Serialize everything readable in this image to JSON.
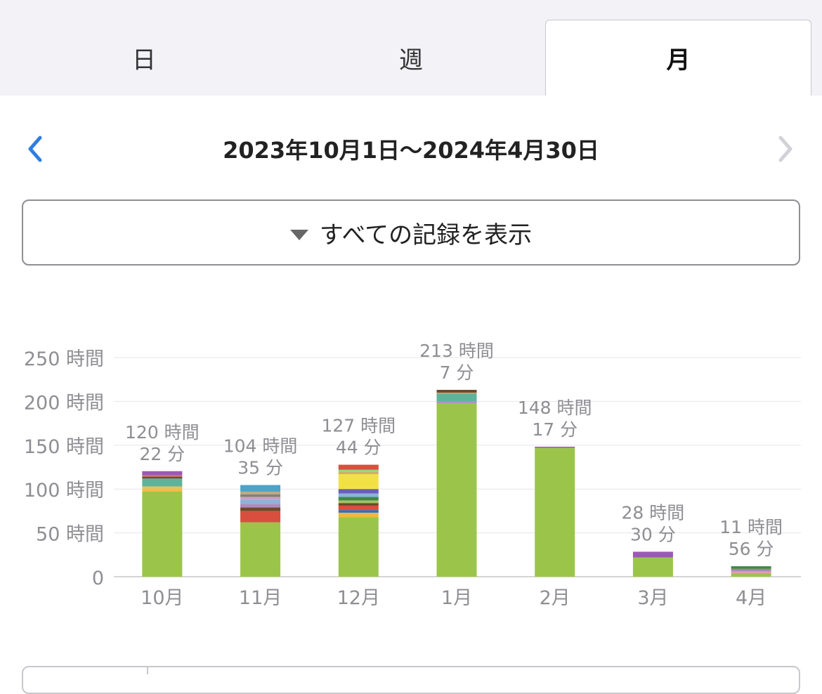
{
  "tabs": [
    {
      "label": "日",
      "active": false
    },
    {
      "label": "週",
      "active": false
    },
    {
      "label": "月",
      "active": true
    }
  ],
  "range": {
    "label": "2023年10月1日〜2024年4月30日",
    "prev_icon": "chevron-left-icon",
    "next_icon": "chevron-right-icon"
  },
  "filter": {
    "label": "すべての記録を表示",
    "icon": "triangle-down-icon"
  },
  "colors": {
    "accent": "#2f7de1",
    "gridline": "#e5e5ea",
    "axis_text": "#8e8e93",
    "primary_series": "#9bc54a"
  },
  "chart_data": {
    "type": "bar",
    "stacked": true,
    "y_unit": "時間",
    "ylim": [
      0,
      250
    ],
    "yticks": [
      {
        "value": 0,
        "label": "0"
      },
      {
        "value": 50,
        "label": "50 時間"
      },
      {
        "value": 100,
        "label": "100 時間"
      },
      {
        "value": 150,
        "label": "150 時間"
      },
      {
        "value": 200,
        "label": "200 時間"
      },
      {
        "value": 250,
        "label": "250 時間"
      }
    ],
    "grid": true,
    "categories": [
      "10月",
      "11月",
      "12月",
      "1月",
      "2月",
      "3月",
      "4月"
    ],
    "totals": [
      {
        "hours": "120 時間",
        "minutes": "22 分",
        "value": 120.37
      },
      {
        "hours": "104 時間",
        "minutes": "35 分",
        "value": 104.58
      },
      {
        "hours": "127 時間",
        "minutes": "44 分",
        "value": 127.73
      },
      {
        "hours": "213 時間",
        "minutes": "7 分",
        "value": 213.12
      },
      {
        "hours": "148 時間",
        "minutes": "17 分",
        "value": 148.28
      },
      {
        "hours": "28 時間",
        "minutes": "30 分",
        "value": 28.5
      },
      {
        "hours": "11 時間",
        "minutes": "56 分",
        "value": 11.93
      }
    ],
    "stacks": [
      [
        {
          "value": 97,
          "color": "#9bc54a"
        },
        {
          "value": 2,
          "color": "#f0b840"
        },
        {
          "value": 4,
          "color": "#e8c15a"
        },
        {
          "value": 9,
          "color": "#5fb39a"
        },
        {
          "value": 2,
          "color": "#6b4a2a"
        },
        {
          "value": 2,
          "color": "#c46d5a"
        },
        {
          "value": 4.37,
          "color": "#9b59b6"
        }
      ],
      [
        {
          "value": 62,
          "color": "#9bc54a"
        },
        {
          "value": 13,
          "color": "#d94f3d"
        },
        {
          "value": 4,
          "color": "#6b4a2a"
        },
        {
          "value": 4,
          "color": "#b08ac2"
        },
        {
          "value": 5,
          "color": "#8cb3d8"
        },
        {
          "value": 3,
          "color": "#c9a0c9"
        },
        {
          "value": 3,
          "color": "#8a7f6a"
        },
        {
          "value": 3,
          "color": "#bfa980"
        },
        {
          "value": 7.58,
          "color": "#4fa3c4"
        }
      ],
      [
        {
          "value": 68,
          "color": "#9bc54a"
        },
        {
          "value": 5,
          "color": "#f0b840"
        },
        {
          "value": 3,
          "color": "#2f6fb5"
        },
        {
          "value": 5,
          "color": "#d94f3d"
        },
        {
          "value": 3,
          "color": "#6b4a2a"
        },
        {
          "value": 3,
          "color": "#a8c060"
        },
        {
          "value": 4,
          "color": "#3d8a4a"
        },
        {
          "value": 4,
          "color": "#8cb3d8"
        },
        {
          "value": 5,
          "color": "#6b5fb5"
        },
        {
          "value": 17,
          "color": "#f2e144"
        },
        {
          "value": 3,
          "color": "#c9b070"
        },
        {
          "value": 2,
          "color": "#9bd47a"
        },
        {
          "value": 5.73,
          "color": "#d94f3d"
        }
      ],
      [
        {
          "value": 198,
          "color": "#9bc54a"
        },
        {
          "value": 2,
          "color": "#b08ac2"
        },
        {
          "value": 9,
          "color": "#5fb39a"
        },
        {
          "value": 1,
          "color": "#c9a070"
        },
        {
          "value": 3.12,
          "color": "#6b4a2a"
        }
      ],
      [
        {
          "value": 147,
          "color": "#9bc54a"
        },
        {
          "value": 1.28,
          "color": "#9b59b6"
        }
      ],
      [
        {
          "value": 22,
          "color": "#9bc54a"
        },
        {
          "value": 6.5,
          "color": "#9b59b6"
        }
      ],
      [
        {
          "value": 4,
          "color": "#9bc54a"
        },
        {
          "value": 2,
          "color": "#e0a0b0"
        },
        {
          "value": 2,
          "color": "#b08ac2"
        },
        {
          "value": 1,
          "color": "#c46d5a"
        },
        {
          "value": 2.93,
          "color": "#3d8a4a"
        }
      ]
    ]
  }
}
